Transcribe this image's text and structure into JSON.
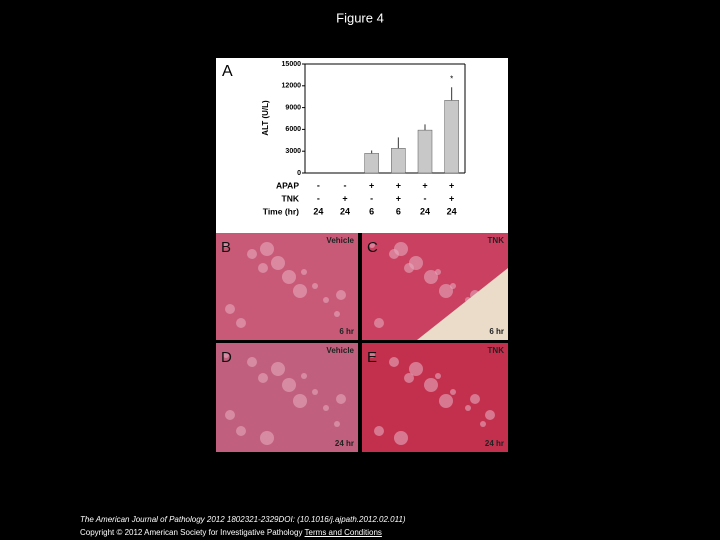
{
  "figure_title": "Figure 4",
  "chart_data": {
    "type": "bar",
    "panel_label": "A",
    "y_label": "ALT (U/L)",
    "categories": [
      null,
      null,
      null,
      null,
      null,
      null
    ],
    "values": [
      0,
      0,
      2700,
      3400,
      5900,
      10000
    ],
    "errors": [
      0,
      0,
      400,
      1500,
      800,
      1800
    ],
    "color": "#c8c8c8",
    "annotation": "*",
    "ylim": [
      0,
      15000
    ],
    "yticks": [
      0,
      3000,
      6000,
      9000,
      12000,
      15000
    ],
    "grid": false,
    "condition_rows": [
      {
        "label": "APAP",
        "values": [
          "-",
          "-",
          "+",
          "+",
          "+",
          "+"
        ]
      },
      {
        "label": "TNK",
        "values": [
          "-",
          "+",
          "-",
          "+",
          "-",
          "+"
        ]
      },
      {
        "label": "Time (hr)",
        "values": [
          "24",
          "24",
          "6",
          "6",
          "24",
          "24"
        ]
      }
    ]
  },
  "panels": [
    {
      "letter": "B",
      "treatment": "Vehicle",
      "time": "6 hr"
    },
    {
      "letter": "C",
      "treatment": "TNK",
      "time": "6 hr"
    },
    {
      "letter": "D",
      "treatment": "Vehicle",
      "time": "24 hr"
    },
    {
      "letter": "E",
      "treatment": "TNK",
      "time": "24 hr"
    }
  ],
  "footer": {
    "citation": "The American Journal of Pathology 2012 1802321-2329DOI: (10.1016/j.ajpath.2012.02.011)",
    "copyright": "Copyright © 2012 American Society for Investigative Pathology",
    "link": "Terms and Conditions"
  }
}
